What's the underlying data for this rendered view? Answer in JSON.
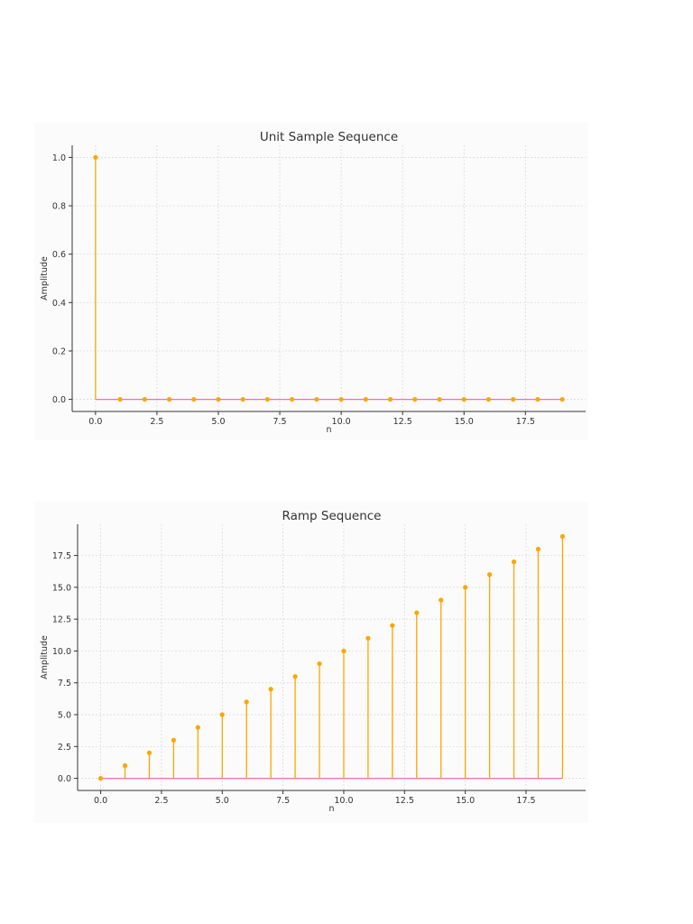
{
  "colors": {
    "stem": "#ffa500",
    "marker": "#ffa500",
    "baseline": "#ff69b4"
  },
  "chart_data": [
    {
      "type": "stem",
      "title": "Unit Sample Sequence",
      "xlabel": "n",
      "ylabel": "Amplitude",
      "x": [
        0,
        1,
        2,
        3,
        4,
        5,
        6,
        7,
        8,
        9,
        10,
        11,
        12,
        13,
        14,
        15,
        16,
        17,
        18,
        19
      ],
      "y": [
        1,
        0,
        0,
        0,
        0,
        0,
        0,
        0,
        0,
        0,
        0,
        0,
        0,
        0,
        0,
        0,
        0,
        0,
        0,
        0
      ],
      "xlim": [
        -0.95,
        19.95
      ],
      "ylim": [
        -0.05,
        1.05
      ],
      "xticks": [
        0,
        2.5,
        5,
        7.5,
        10,
        12.5,
        15,
        17.5
      ],
      "xtick_labels": [
        "0.0",
        "2.5",
        "5.0",
        "7.5",
        "10.0",
        "12.5",
        "15.0",
        "17.5"
      ],
      "yticks": [
        0,
        0.2,
        0.4,
        0.6,
        0.8,
        1.0
      ],
      "ytick_labels": [
        "0.0",
        "0.2",
        "0.4",
        "0.6",
        "0.8",
        "1.0"
      ],
      "grid": true
    },
    {
      "type": "stem",
      "title": "Ramp Sequence",
      "xlabel": "n",
      "ylabel": "Amplitude",
      "x": [
        0,
        1,
        2,
        3,
        4,
        5,
        6,
        7,
        8,
        9,
        10,
        11,
        12,
        13,
        14,
        15,
        16,
        17,
        18,
        19
      ],
      "y": [
        0,
        1,
        2,
        3,
        4,
        5,
        6,
        7,
        8,
        9,
        10,
        11,
        12,
        13,
        14,
        15,
        16,
        17,
        18,
        19
      ],
      "xlim": [
        -0.95,
        19.95
      ],
      "ylim": [
        -0.95,
        19.95
      ],
      "xticks": [
        0,
        2.5,
        5,
        7.5,
        10,
        12.5,
        15,
        17.5
      ],
      "xtick_labels": [
        "0.0",
        "2.5",
        "5.0",
        "7.5",
        "10.0",
        "12.5",
        "15.0",
        "17.5"
      ],
      "yticks": [
        0,
        2.5,
        5,
        7.5,
        10,
        12.5,
        15,
        17.5
      ],
      "ytick_labels": [
        "0.0",
        "2.5",
        "5.0",
        "7.5",
        "10.0",
        "12.5",
        "15.0",
        "17.5"
      ],
      "grid": true
    }
  ]
}
